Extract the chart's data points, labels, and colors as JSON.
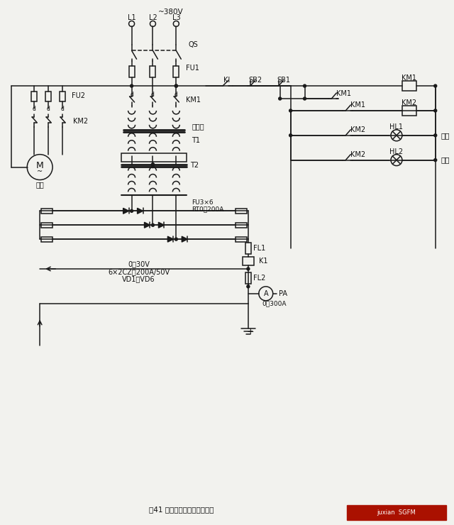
{
  "title": "图41 利用硅整流器件电镀线路",
  "bg_color": "#f2f2ee",
  "line_color": "#1a1a1a",
  "text_color": "#111111",
  "voltage_label": "~380V",
  "phase_labels": [
    "L1",
    "L2",
    "L3"
  ],
  "bottom_labels_1": "0～30V",
  "bottom_labels_2": "6×2CZ－200A/50V",
  "bottom_labels_3": "VD1～VD6",
  "pa_range": "0～300A",
  "fu3_label": "FU3×6",
  "rt0_label": "RT0－200A",
  "t1_label": "调压器",
  "run_label": "运行",
  "stop_label": "停止",
  "fan_label": "风扇"
}
